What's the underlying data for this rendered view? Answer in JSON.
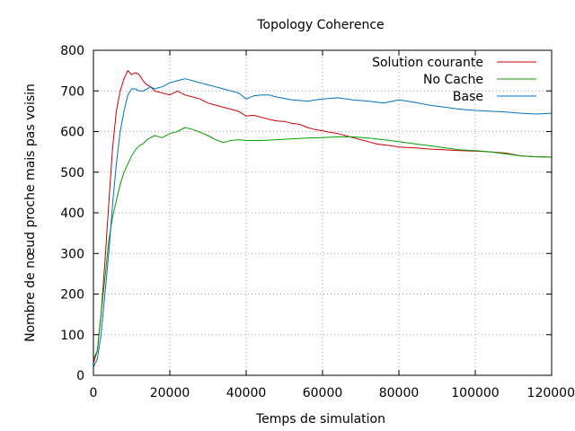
{
  "chart_data": {
    "type": "line",
    "title": "Topology Coherence",
    "xlabel": "Temps de simulation",
    "ylabel": "Nombre de nœud proche mais pas voisin",
    "xlim": [
      0,
      120000
    ],
    "ylim": [
      0,
      800
    ],
    "xticks": [
      0,
      20000,
      40000,
      60000,
      80000,
      100000,
      120000
    ],
    "yticks": [
      0,
      100,
      200,
      300,
      400,
      500,
      600,
      700,
      800
    ],
    "grid": true,
    "legend_position": "top-right",
    "series": [
      {
        "name": "Solution courante",
        "color": "#cc0000",
        "x": [
          0,
          1000,
          2000,
          3000,
          4000,
          5000,
          6000,
          7000,
          8000,
          9000,
          10000,
          11000,
          12000,
          13000,
          14000,
          15000,
          16000,
          18000,
          20000,
          22000,
          24000,
          26000,
          28000,
          30000,
          32000,
          34000,
          36000,
          38000,
          40000,
          42000,
          44000,
          46000,
          48000,
          50000,
          52000,
          54000,
          56000,
          58000,
          60000,
          62000,
          64000,
          66000,
          68000,
          70000,
          72000,
          74000,
          76000,
          78000,
          80000,
          84000,
          88000,
          92000,
          96000,
          100000,
          104000,
          108000,
          112000,
          116000,
          120000
        ],
        "y": [
          30,
          60,
          150,
          280,
          420,
          560,
          650,
          700,
          730,
          750,
          740,
          745,
          740,
          725,
          715,
          710,
          700,
          695,
          690,
          700,
          690,
          685,
          680,
          670,
          665,
          660,
          655,
          650,
          638,
          640,
          635,
          630,
          626,
          625,
          620,
          618,
          610,
          605,
          602,
          598,
          595,
          590,
          585,
          580,
          575,
          570,
          567,
          565,
          562,
          560,
          557,
          555,
          553,
          552,
          550,
          547,
          540,
          538,
          537
        ]
      },
      {
        "name": "No Cache",
        "color": "#00a000",
        "x": [
          0,
          1000,
          2000,
          3000,
          4000,
          5000,
          6000,
          7000,
          8000,
          9000,
          10000,
          11000,
          12000,
          13000,
          14000,
          15000,
          16000,
          18000,
          20000,
          22000,
          24000,
          26000,
          28000,
          30000,
          32000,
          34000,
          36000,
          38000,
          40000,
          44000,
          48000,
          52000,
          56000,
          60000,
          64000,
          68000,
          72000,
          76000,
          80000,
          84000,
          88000,
          92000,
          96000,
          100000,
          104000,
          108000,
          112000,
          116000,
          120000
        ],
        "y": [
          40,
          60,
          150,
          240,
          330,
          390,
          430,
          470,
          500,
          520,
          540,
          555,
          565,
          570,
          580,
          585,
          590,
          585,
          595,
          600,
          610,
          605,
          598,
          590,
          580,
          573,
          578,
          580,
          578,
          578,
          580,
          582,
          584,
          585,
          587,
          587,
          584,
          580,
          575,
          570,
          565,
          560,
          555,
          553,
          550,
          545,
          540,
          538,
          537
        ]
      },
      {
        "name": "Base",
        "color": "#0070c0",
        "x": [
          0,
          1000,
          2000,
          3000,
          4000,
          5000,
          6000,
          7000,
          8000,
          9000,
          10000,
          11000,
          12000,
          13000,
          14000,
          15000,
          16000,
          18000,
          20000,
          22000,
          24000,
          26000,
          28000,
          30000,
          32000,
          34000,
          36000,
          38000,
          40000,
          42000,
          44000,
          46000,
          48000,
          52000,
          56000,
          60000,
          64000,
          68000,
          72000,
          76000,
          80000,
          84000,
          88000,
          92000,
          96000,
          100000,
          104000,
          108000,
          112000,
          116000,
          120000
        ],
        "y": [
          20,
          40,
          100,
          200,
          300,
          420,
          520,
          600,
          650,
          690,
          705,
          705,
          700,
          700,
          705,
          710,
          705,
          710,
          720,
          725,
          730,
          725,
          720,
          715,
          710,
          705,
          700,
          695,
          680,
          688,
          690,
          690,
          685,
          678,
          675,
          680,
          683,
          678,
          675,
          670,
          678,
          672,
          665,
          660,
          655,
          652,
          650,
          648,
          645,
          643,
          645
        ]
      }
    ]
  }
}
